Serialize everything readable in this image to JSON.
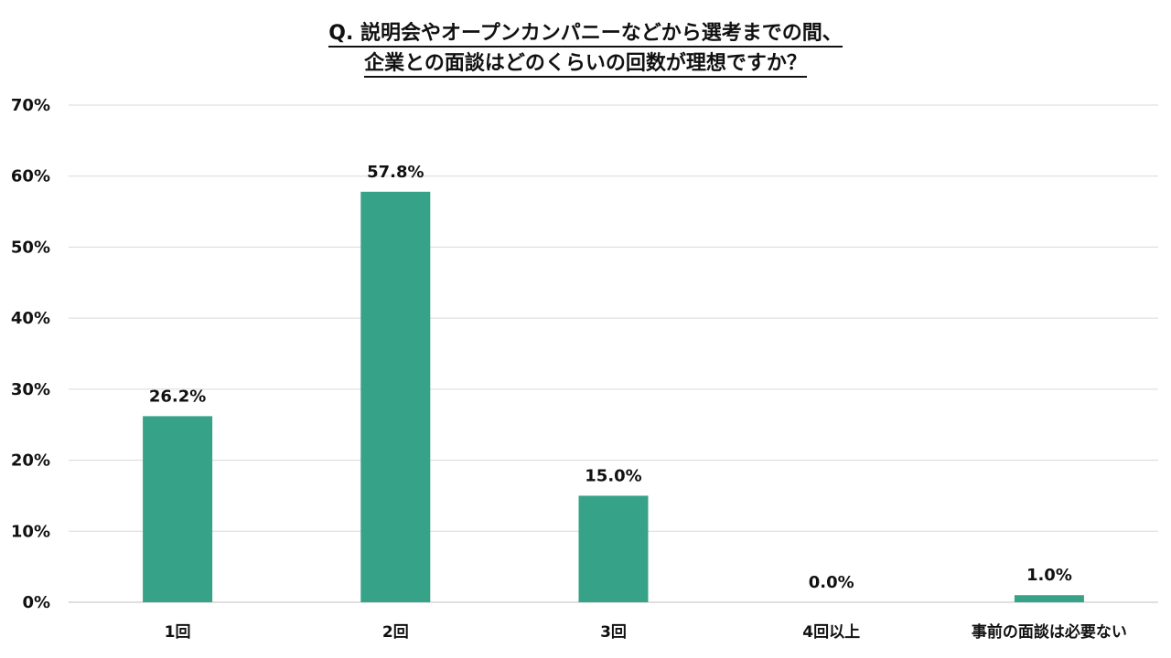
{
  "chart_data": {
    "type": "bar",
    "title": [
      "Q. 説明会やオープンカンパニーなどから選考までの間、",
      "企業との面談はどのくらいの回数が理想ですか？"
    ],
    "categories": [
      "1回",
      "2回",
      "3回",
      "4回以上",
      "事前の面談は必要ない"
    ],
    "values": [
      26.2,
      57.8,
      15.0,
      0.0,
      1.0
    ],
    "data_labels": [
      "26.2%",
      "57.8%",
      "15.0%",
      "0.0%",
      "1.0%"
    ],
    "ylim": [
      0,
      70
    ],
    "yticks": [
      0,
      10,
      20,
      30,
      40,
      50,
      60,
      70
    ],
    "ytick_labels": [
      "0%",
      "10%",
      "20%",
      "30%",
      "40%",
      "50%",
      "60%",
      "70%"
    ],
    "xlabel": "",
    "ylabel": "",
    "grid": true,
    "legend": false,
    "bar_color": "#36A287",
    "grid_color": "#d9d9d9"
  }
}
